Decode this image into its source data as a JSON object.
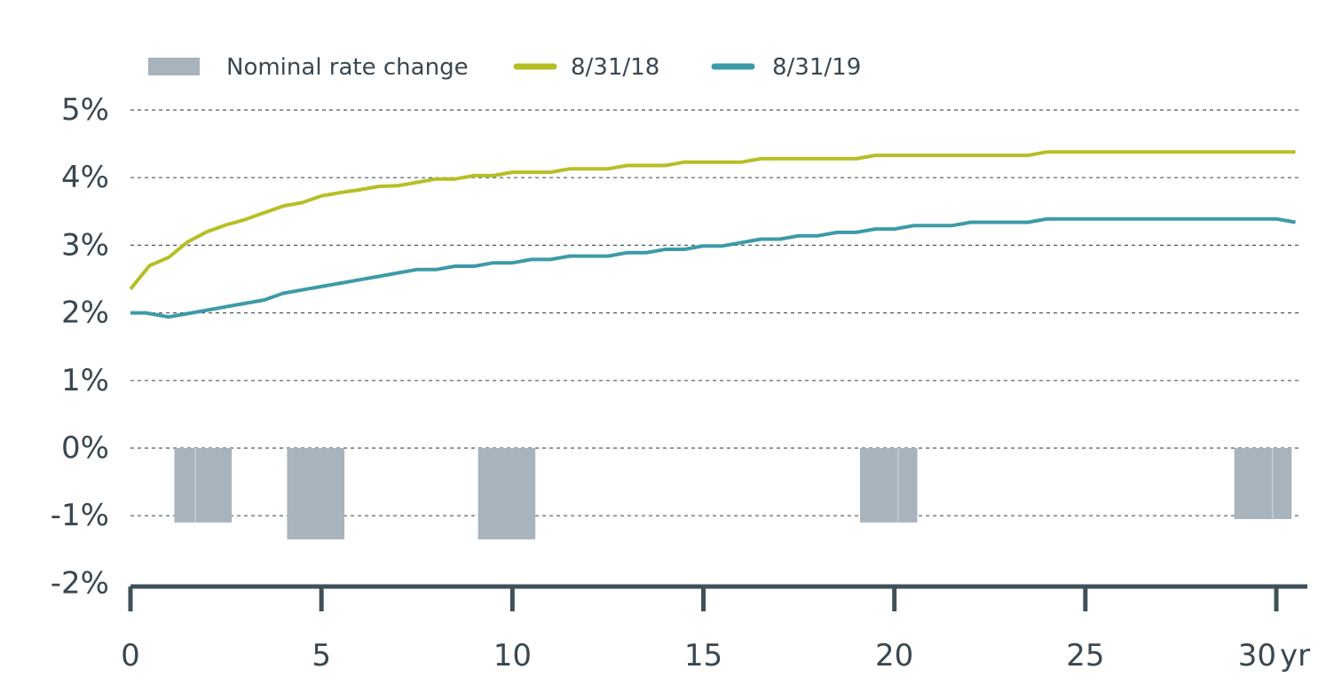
{
  "chart_data": {
    "type": "line",
    "title": "",
    "xlabel": "",
    "ylabel": "",
    "x_unit_label": "yr",
    "xlim": [
      0,
      30.5
    ],
    "ylim": [
      -2,
      5
    ],
    "grid": true,
    "legend_position": "top",
    "x_ticks": [
      {
        "value": 0,
        "label": "0"
      },
      {
        "value": 5,
        "label": "5"
      },
      {
        "value": 10,
        "label": "10"
      },
      {
        "value": 15,
        "label": "15"
      },
      {
        "value": 20,
        "label": "20"
      },
      {
        "value": 25,
        "label": "25"
      },
      {
        "value": 30,
        "label": "30"
      }
    ],
    "y_ticks": [
      {
        "value": 5,
        "label": "5%"
      },
      {
        "value": 4,
        "label": "4%"
      },
      {
        "value": 3,
        "label": "3%"
      },
      {
        "value": 2,
        "label": "2%"
      },
      {
        "value": 1,
        "label": "1%"
      },
      {
        "value": 0,
        "label": "0%"
      },
      {
        "value": -1,
        "label": "-1%"
      },
      {
        "value": -2,
        "label": "-2%"
      }
    ],
    "legend": [
      {
        "label": "Nominal rate change",
        "kind": "bar",
        "color": "#a9b3bc"
      },
      {
        "label": "8/31/18",
        "kind": "line",
        "color": "#b5bf25"
      },
      {
        "label": "8/31/19",
        "kind": "line",
        "color": "#3d9aa8"
      }
    ],
    "bars": {
      "name": "Nominal rate change",
      "color": "#a9b3bc",
      "items": [
        {
          "x0": 1.15,
          "x1": 1.7,
          "value": -1.1
        },
        {
          "x0": 1.7,
          "x1": 2.65,
          "value": -1.1
        },
        {
          "x0": 4.1,
          "x1": 5.6,
          "value": -1.35
        },
        {
          "x0": 9.1,
          "x1": 10.6,
          "value": -1.35
        },
        {
          "x0": 19.1,
          "x1": 20.1,
          "value": -1.1
        },
        {
          "x0": 20.1,
          "x1": 20.6,
          "value": -1.1
        },
        {
          "x0": 28.9,
          "x1": 29.9,
          "value": -1.05
        },
        {
          "x0": 29.9,
          "x1": 30.4,
          "value": -1.05
        }
      ]
    },
    "series": [
      {
        "name": "8/31/18",
        "color": "#b5bf25",
        "points": [
          [
            0,
            2.35
          ],
          [
            0.5,
            2.7
          ],
          [
            1,
            2.82
          ],
          [
            1.5,
            3.05
          ],
          [
            2,
            3.2
          ],
          [
            2.5,
            3.3
          ],
          [
            3,
            3.38
          ],
          [
            3.5,
            3.48
          ],
          [
            4,
            3.58
          ],
          [
            4.5,
            3.63
          ],
          [
            5,
            3.73
          ],
          [
            5.5,
            3.78
          ],
          [
            6,
            3.82
          ],
          [
            6.5,
            3.87
          ],
          [
            7,
            3.88
          ],
          [
            7.5,
            3.93
          ],
          [
            8,
            3.98
          ],
          [
            8.5,
            3.98
          ],
          [
            9,
            4.03
          ],
          [
            9.5,
            4.03
          ],
          [
            10,
            4.08
          ],
          [
            10.5,
            4.08
          ],
          [
            11,
            4.08
          ],
          [
            11.5,
            4.13
          ],
          [
            12,
            4.13
          ],
          [
            12.5,
            4.13
          ],
          [
            13,
            4.18
          ],
          [
            13.5,
            4.18
          ],
          [
            14,
            4.18
          ],
          [
            14.5,
            4.23
          ],
          [
            15,
            4.23
          ],
          [
            15.5,
            4.23
          ],
          [
            16,
            4.23
          ],
          [
            16.5,
            4.28
          ],
          [
            17,
            4.28
          ],
          [
            17.5,
            4.28
          ],
          [
            18,
            4.28
          ],
          [
            18.5,
            4.28
          ],
          [
            19,
            4.28
          ],
          [
            19.5,
            4.33
          ],
          [
            20,
            4.33
          ],
          [
            20.5,
            4.33
          ],
          [
            21,
            4.33
          ],
          [
            21.5,
            4.33
          ],
          [
            22,
            4.33
          ],
          [
            22.5,
            4.33
          ],
          [
            23,
            4.33
          ],
          [
            23.5,
            4.33
          ],
          [
            24,
            4.38
          ],
          [
            24.5,
            4.38
          ],
          [
            25,
            4.38
          ],
          [
            25.5,
            4.38
          ],
          [
            26,
            4.38
          ],
          [
            26.5,
            4.38
          ],
          [
            27,
            4.38
          ],
          [
            27.5,
            4.38
          ],
          [
            28,
            4.38
          ],
          [
            28.5,
            4.38
          ],
          [
            29,
            4.38
          ],
          [
            29.5,
            4.38
          ],
          [
            30,
            4.38
          ],
          [
            30.5,
            4.38
          ]
        ]
      },
      {
        "name": "8/31/19",
        "color": "#3d9aa8",
        "points": [
          [
            0,
            2.0
          ],
          [
            0.4,
            2.0
          ],
          [
            0.6,
            1.98
          ],
          [
            1,
            1.94
          ],
          [
            1.5,
            1.99
          ],
          [
            2,
            2.04
          ],
          [
            2.5,
            2.09
          ],
          [
            3,
            2.14
          ],
          [
            3.5,
            2.19
          ],
          [
            4,
            2.29
          ],
          [
            4.5,
            2.34
          ],
          [
            5,
            2.39
          ],
          [
            5.5,
            2.44
          ],
          [
            6,
            2.49
          ],
          [
            6.5,
            2.54
          ],
          [
            7,
            2.59
          ],
          [
            7.5,
            2.64
          ],
          [
            8,
            2.64
          ],
          [
            8.5,
            2.69
          ],
          [
            9,
            2.69
          ],
          [
            9.5,
            2.74
          ],
          [
            10,
            2.74
          ],
          [
            10.5,
            2.79
          ],
          [
            11,
            2.79
          ],
          [
            11.5,
            2.84
          ],
          [
            12,
            2.84
          ],
          [
            12.5,
            2.84
          ],
          [
            13,
            2.89
          ],
          [
            13.5,
            2.89
          ],
          [
            14,
            2.94
          ],
          [
            14.5,
            2.94
          ],
          [
            15,
            2.99
          ],
          [
            15.5,
            2.99
          ],
          [
            16,
            3.04
          ],
          [
            16.5,
            3.09
          ],
          [
            17,
            3.09
          ],
          [
            17.5,
            3.14
          ],
          [
            18,
            3.14
          ],
          [
            18.5,
            3.19
          ],
          [
            19,
            3.19
          ],
          [
            19.5,
            3.24
          ],
          [
            20,
            3.24
          ],
          [
            20.5,
            3.29
          ],
          [
            21,
            3.29
          ],
          [
            21.5,
            3.29
          ],
          [
            22,
            3.34
          ],
          [
            22.5,
            3.34
          ],
          [
            23,
            3.34
          ],
          [
            23.5,
            3.34
          ],
          [
            24,
            3.39
          ],
          [
            24.5,
            3.39
          ],
          [
            25,
            3.39
          ],
          [
            25.5,
            3.39
          ],
          [
            26,
            3.39
          ],
          [
            26.5,
            3.39
          ],
          [
            27,
            3.39
          ],
          [
            27.5,
            3.39
          ],
          [
            28,
            3.39
          ],
          [
            28.5,
            3.39
          ],
          [
            29,
            3.39
          ],
          [
            29.5,
            3.39
          ],
          [
            30,
            3.39
          ],
          [
            30.5,
            3.34
          ]
        ]
      }
    ]
  }
}
